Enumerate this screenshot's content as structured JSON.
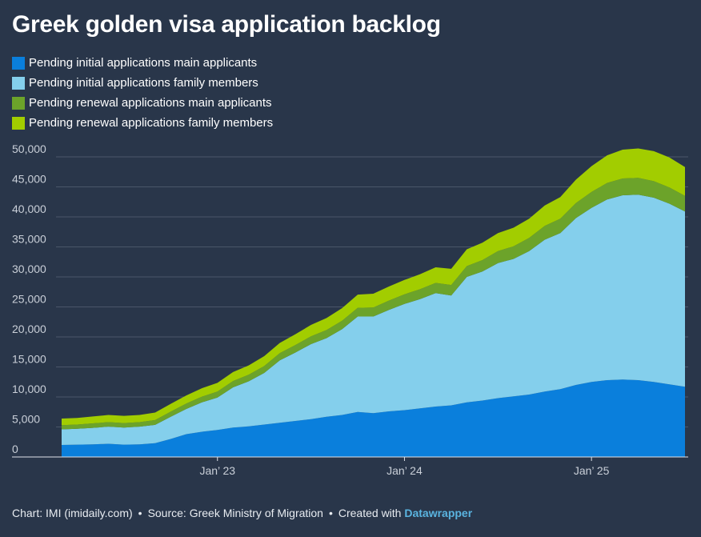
{
  "chart_data": {
    "type": "area",
    "stacked": true,
    "title": "Greek golden visa application backlog",
    "xlabel": "",
    "ylabel": "",
    "ylim": [
      0,
      52000
    ],
    "yticks": [
      0,
      5000,
      10000,
      15000,
      20000,
      25000,
      30000,
      35000,
      40000,
      45000,
      50000
    ],
    "ytick_labels": [
      "0",
      "5,000",
      "10,000",
      "15,000",
      "20,000",
      "25,000",
      "30,000",
      "35,000",
      "40,000",
      "45,000",
      "50,000"
    ],
    "x_start_month_index": 0,
    "x_start_label": "Mar 2022",
    "xticks": [
      {
        "month_index": 10,
        "label": "Jan’ 23"
      },
      {
        "month_index": 22,
        "label": "Jan’ 24"
      },
      {
        "month_index": 34,
        "label": "Jan’ 25"
      }
    ],
    "legend_position": "top-left",
    "series": [
      {
        "name": "Pending initial applications main applicants",
        "color": "#0a7fdc",
        "values": [
          2000,
          2050,
          2100,
          2200,
          2050,
          2100,
          2300,
          3000,
          3800,
          4200,
          4500,
          4900,
          5100,
          5400,
          5700,
          6000,
          6300,
          6700,
          7000,
          7500,
          7300,
          7600,
          7800,
          8100,
          8400,
          8600,
          9100,
          9400,
          9800,
          10100,
          10400,
          10900,
          11300,
          12000,
          12500,
          12800,
          12900,
          12800,
          12500,
          12100,
          11700
        ]
      },
      {
        "name": "Pending initial applications family members",
        "color": "#84cfec",
        "values": [
          2600,
          2650,
          2750,
          2850,
          2850,
          2950,
          3050,
          3700,
          4200,
          4900,
          5400,
          6700,
          7500,
          8600,
          10400,
          11400,
          12500,
          13100,
          14300,
          15900,
          16100,
          16900,
          17700,
          18200,
          18900,
          18300,
          20900,
          21500,
          22500,
          22900,
          23900,
          25300,
          26000,
          27800,
          29000,
          30100,
          30700,
          30900,
          30700,
          30100,
          29200
        ]
      },
      {
        "name": "Pending renewal applications main applicants",
        "color": "#6ca32a",
        "values": [
          700,
          700,
          750,
          750,
          750,
          750,
          800,
          850,
          900,
          950,
          1000,
          1050,
          1100,
          1150,
          1200,
          1250,
          1300,
          1350,
          1400,
          1450,
          1500,
          1550,
          1600,
          1650,
          1700,
          1750,
          1800,
          1900,
          2000,
          2100,
          2200,
          2300,
          2400,
          2500,
          2650,
          2750,
          2800,
          2800,
          2750,
          2700,
          2600
        ]
      },
      {
        "name": "Pending renewal applications family members",
        "color": "#a2cd00",
        "values": [
          1100,
          1100,
          1150,
          1200,
          1200,
          1200,
          1250,
          1300,
          1350,
          1400,
          1450,
          1500,
          1550,
          1650,
          1700,
          1800,
          1900,
          2000,
          2100,
          2200,
          2300,
          2350,
          2400,
          2500,
          2600,
          2700,
          2800,
          2900,
          3000,
          3100,
          3200,
          3400,
          3600,
          3900,
          4300,
          4600,
          4800,
          4900,
          5000,
          5000,
          4800
        ]
      }
    ],
    "grid": true
  },
  "footer": {
    "chart_credit": "Chart: IMI (imidaily.com)",
    "source": "Source: Greek Ministry of Migration",
    "created_with": "Created with",
    "brand": "Datawrapper",
    "separator": "•"
  },
  "colors": {
    "background": "#29364a",
    "gridline": "#4a5669",
    "axis_text": "#c9cfd8"
  }
}
